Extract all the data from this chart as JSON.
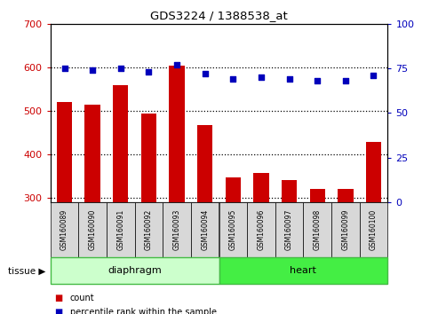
{
  "title": "GDS3224 / 1388538_at",
  "categories": [
    "GSM160089",
    "GSM160090",
    "GSM160091",
    "GSM160092",
    "GSM160093",
    "GSM160094",
    "GSM160095",
    "GSM160096",
    "GSM160097",
    "GSM160098",
    "GSM160099",
    "GSM160100"
  ],
  "counts": [
    520,
    515,
    558,
    493,
    603,
    468,
    348,
    358,
    342,
    322,
    322,
    428
  ],
  "percentiles": [
    75,
    74,
    75,
    73,
    77,
    72,
    69,
    70,
    69,
    68,
    68,
    71
  ],
  "ylim_left": [
    290,
    700
  ],
  "ylim_right": [
    0,
    100
  ],
  "yticks_left": [
    300,
    400,
    500,
    600,
    700
  ],
  "yticks_right": [
    0,
    25,
    50,
    75,
    100
  ],
  "bar_color": "#cc0000",
  "dot_color": "#0000bb",
  "bar_bottom": 290,
  "groups": [
    {
      "label": "diaphragm",
      "start": 0,
      "end": 6,
      "color": "#ccffcc",
      "border_color": "#44bb44"
    },
    {
      "label": "heart",
      "start": 6,
      "end": 12,
      "color": "#44ee44",
      "border_color": "#44bb44"
    }
  ],
  "group_row_label": "tissue",
  "tick_label_color_left": "#cc0000",
  "tick_label_color_right": "#0000bb",
  "dotted_line_color": "#000000",
  "bg_color": "#ffffff",
  "xticklabel_bg": "#d8d8d8"
}
